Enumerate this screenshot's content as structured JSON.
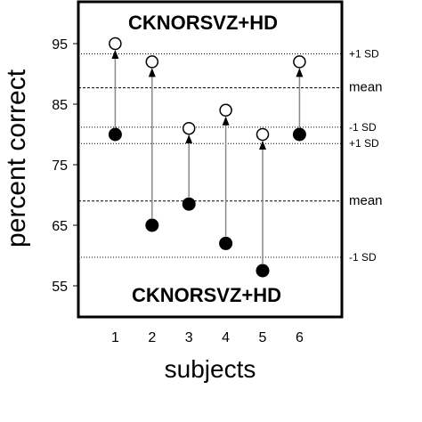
{
  "chart_data": {
    "type": "scatter",
    "title_top": "CKNORSVZ+HD",
    "title_bottom": "CKNORSVZ+HD",
    "xlabel": "subjects",
    "ylabel": "percent correct",
    "x_ticks": [
      "1",
      "2",
      "3",
      "4",
      "5",
      "6"
    ],
    "y_ticks": [
      95,
      85,
      75,
      65,
      55
    ],
    "ylim": [
      52,
      100
    ],
    "xlim": [
      0,
      7.2
    ],
    "legend_placement": "none",
    "grid": false,
    "subjects": [
      1,
      2,
      3,
      4,
      5,
      6
    ],
    "series": [
      {
        "marker": "open-circle",
        "values": [
          95,
          92,
          81,
          84,
          80,
          92
        ]
      },
      {
        "marker": "filled-circle",
        "values": [
          80,
          65,
          68.5,
          62,
          57.5,
          80
        ]
      }
    ],
    "reference_lines": [
      {
        "label": "+1 SD",
        "value": 93.3,
        "style": "dotted"
      },
      {
        "label": "mean",
        "value": 87.7,
        "style": "dashed"
      },
      {
        "label": "-1 SD",
        "value": 81.2,
        "style": "dotted"
      },
      {
        "label": "+1 SD",
        "value": 78.5,
        "style": "dotted"
      },
      {
        "label": "mean",
        "value": 69.0,
        "style": "dashed"
      },
      {
        "label": "-1 SD",
        "value": 59.7,
        "style": "dotted"
      }
    ]
  }
}
